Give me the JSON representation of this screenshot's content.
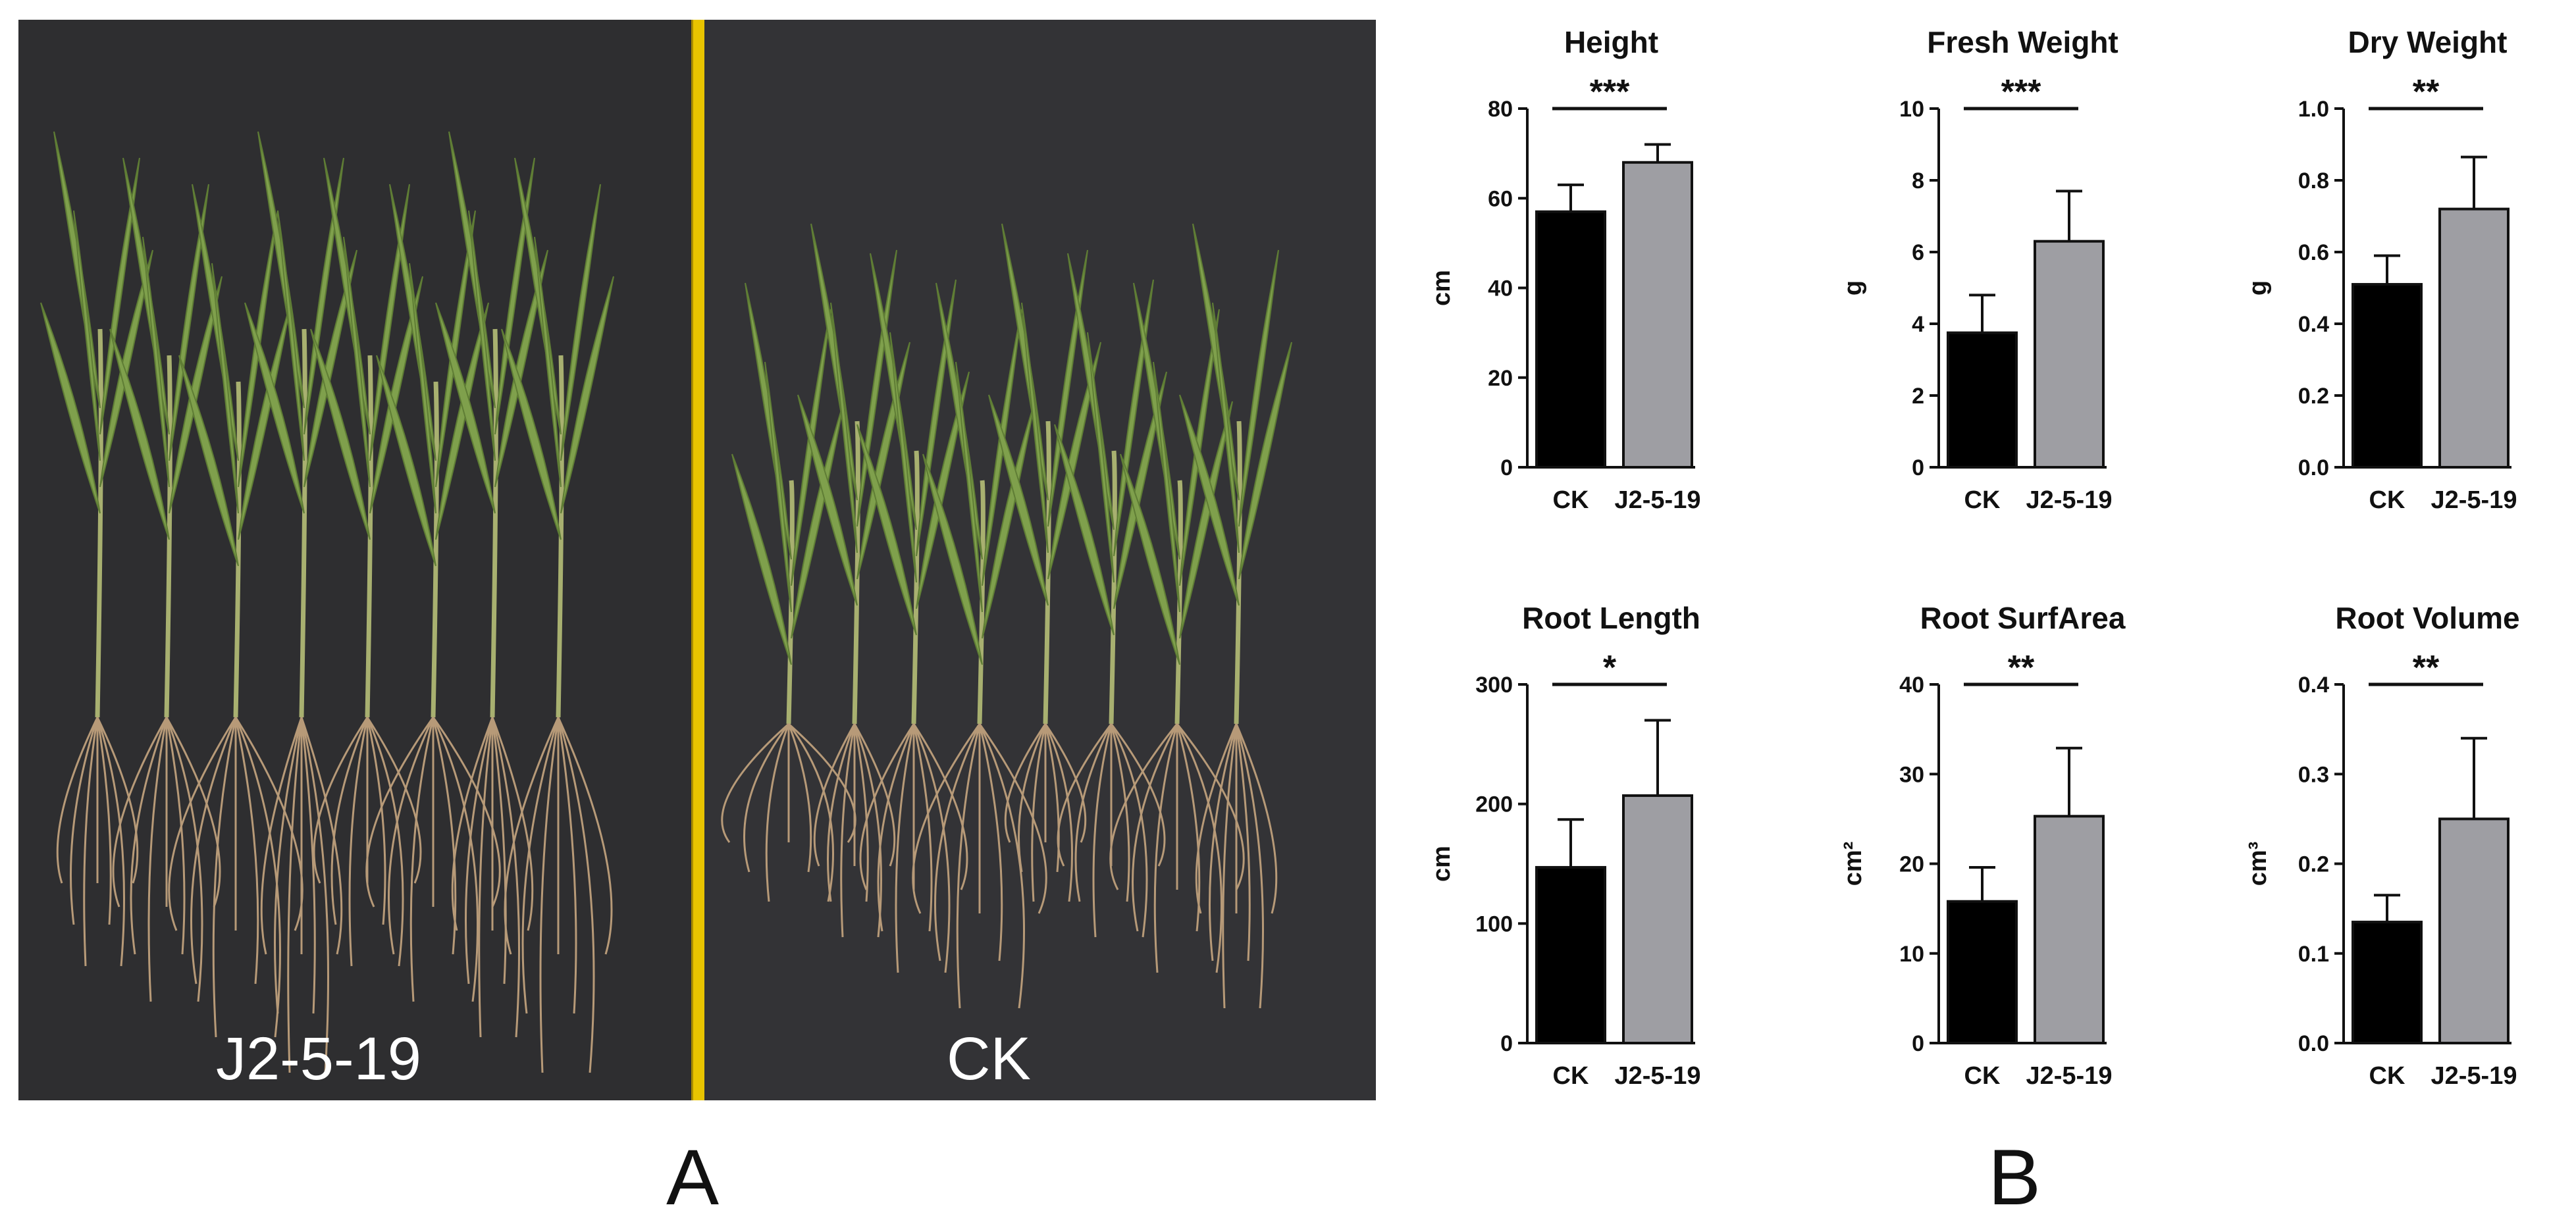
{
  "panel_a": {
    "letter": "A",
    "labels": [
      "J2-5-19",
      "CK"
    ]
  },
  "panel_b": {
    "letter": "B"
  },
  "colors": {
    "ck_bar": "#000000",
    "treatment_bar": "#9e9ea3",
    "background_cloth": "#2e2e30",
    "ruler": "#e8c400",
    "leaf": "#7fa04c",
    "root": "#b79a78"
  },
  "chart_data": [
    {
      "type": "bar",
      "title": "Height",
      "ylabel": "cm",
      "categories": [
        "CK",
        "J2-5-19"
      ],
      "values": [
        57,
        68
      ],
      "errors": [
        6,
        4
      ],
      "ylim": [
        0,
        80
      ],
      "yticks": [
        "0",
        "20",
        "40",
        "60",
        "80"
      ],
      "significance": "***"
    },
    {
      "type": "bar",
      "title": "Fresh Weight",
      "ylabel": "g",
      "categories": [
        "CK",
        "J2-5-19"
      ],
      "values": [
        3.75,
        6.3
      ],
      "errors": [
        1.05,
        1.4
      ],
      "ylim": [
        0,
        10
      ],
      "yticks": [
        "0",
        "2",
        "4",
        "6",
        "8",
        "10"
      ],
      "significance": "***"
    },
    {
      "type": "bar",
      "title": "Dry Weight",
      "ylabel": "g",
      "categories": [
        "CK",
        "J2-5-19"
      ],
      "values": [
        0.51,
        0.72
      ],
      "errors": [
        0.08,
        0.145
      ],
      "ylim": [
        0,
        1.0
      ],
      "yticks": [
        "0.0",
        "0.2",
        "0.4",
        "0.6",
        "0.8",
        "1.0"
      ],
      "significance": "**"
    },
    {
      "type": "bar",
      "title": "Root Length",
      "ylabel": "cm",
      "categories": [
        "CK",
        "J2-5-19"
      ],
      "values": [
        147,
        207
      ],
      "errors": [
        40,
        63
      ],
      "ylim": [
        0,
        300
      ],
      "yticks": [
        "0",
        "100",
        "200",
        "300"
      ],
      "significance": "*"
    },
    {
      "type": "bar",
      "title": "Root SurfArea",
      "ylabel": "cm²",
      "categories": [
        "CK",
        "J2-5-19"
      ],
      "values": [
        15.8,
        25.3
      ],
      "errors": [
        3.8,
        7.6
      ],
      "ylim": [
        0,
        40
      ],
      "yticks": [
        "0",
        "10",
        "20",
        "30",
        "40"
      ],
      "significance": "**"
    },
    {
      "type": "bar",
      "title": "Root Volume",
      "ylabel": "cm³",
      "categories": [
        "CK",
        "J2-5-19"
      ],
      "values": [
        0.135,
        0.25
      ],
      "errors": [
        0.03,
        0.09
      ],
      "ylim": [
        0,
        0.4
      ],
      "yticks": [
        "0.0",
        "0.1",
        "0.2",
        "0.3",
        "0.4"
      ],
      "significance": "**"
    }
  ]
}
